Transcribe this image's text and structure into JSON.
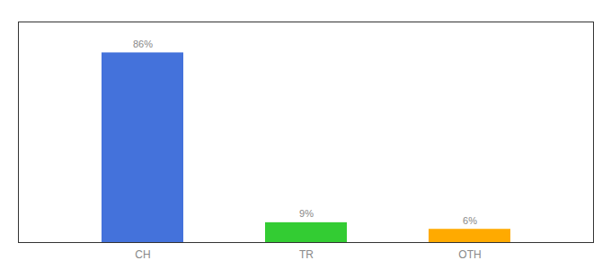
{
  "chart_data": {
    "type": "bar",
    "categories": [
      "CH",
      "TR",
      "OTH"
    ],
    "values": [
      86,
      9,
      6
    ],
    "value_labels": [
      "86%",
      "9%",
      "6%"
    ],
    "colors": [
      "#4472db",
      "#33cc33",
      "#ffaa00"
    ],
    "ylim": [
      0,
      100
    ],
    "data_labels": true,
    "tick_labels": "x",
    "grid": false
  }
}
